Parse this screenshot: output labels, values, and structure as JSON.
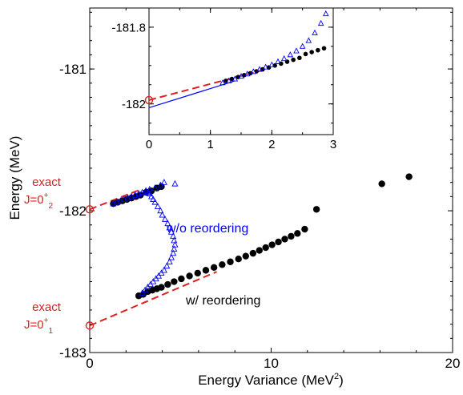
{
  "chart_data": [
    {
      "type": "scatter",
      "xlabel": "Energy Variance (MeV",
      "xlabel_sup": "2",
      "xlabel_close": ")",
      "ylabel": "Energy (MeV)",
      "xlim": [
        0,
        20
      ],
      "ylim": [
        -183,
        -180.57
      ],
      "x_ticks": [
        {
          "value": 0,
          "label": "0"
        },
        {
          "value": 10,
          "label": "10"
        },
        {
          "value": 20,
          "label": "20"
        }
      ],
      "y_ticks": [
        {
          "value": -181,
          "label": "-181"
        },
        {
          "value": -182,
          "label": "-182"
        },
        {
          "value": -183,
          "label": "-183"
        }
      ],
      "colors": {
        "reorder": "#000000",
        "noreorder": "#0000ff",
        "fit": "#e02020",
        "exact": "#e02020"
      },
      "annotations": {
        "exact_upper": {
          "line1": "exact",
          "line2_main": "J=0",
          "line2_sup": "+",
          "line2_sub": "2"
        },
        "exact_lower": {
          "line1": "exact",
          "line2_main": "J=0",
          "line2_sup": "+",
          "line2_sub": "1"
        },
        "label_noreorder": "w/o reordering",
        "label_reorder": "w/ reordering"
      },
      "exact_points": [
        [
          0,
          -181.99
        ],
        [
          0,
          -182.81
        ]
      ],
      "fit_lines": [
        {
          "from": [
            0,
            -181.99
          ],
          "to": [
            2.8,
            -181.85
          ]
        },
        {
          "from": [
            0,
            -182.81
          ],
          "to": [
            7.0,
            -182.43
          ]
        }
      ],
      "series": [
        {
          "name": "w/ reordering",
          "marker": "filled-circle",
          "x": [
            2.7,
            2.95,
            3.2,
            3.45,
            3.7,
            3.95,
            4.3,
            4.65,
            5.05,
            5.5,
            5.95,
            6.4,
            6.85,
            7.3,
            7.75,
            8.2,
            8.6,
            9.0,
            9.35,
            9.7,
            10.05,
            10.4,
            10.75,
            11.1,
            11.45,
            11.85,
            12.5,
            16.1,
            17.6,
            1.3,
            1.55,
            1.8,
            2.05,
            2.3,
            2.55,
            2.8,
            3.1,
            3.4,
            3.7,
            3.95
          ],
          "y": [
            -182.6,
            -182.59,
            -182.57,
            -182.56,
            -182.55,
            -182.54,
            -182.52,
            -182.5,
            -182.48,
            -182.46,
            -182.44,
            -182.42,
            -182.4,
            -182.38,
            -182.36,
            -182.34,
            -182.32,
            -182.3,
            -182.28,
            -182.26,
            -182.24,
            -182.22,
            -182.2,
            -182.18,
            -182.16,
            -182.13,
            -181.99,
            -181.81,
            -181.76,
            -181.95,
            -181.94,
            -181.93,
            -181.92,
            -181.91,
            -181.9,
            -181.89,
            -181.87,
            -181.86,
            -181.84,
            -181.83
          ]
        },
        {
          "name": "w/o reordering",
          "marker": "open-triangle",
          "x": [
            2.9,
            3.05,
            3.2,
            3.35,
            3.5,
            3.65,
            3.8,
            3.95,
            4.1,
            4.25,
            4.4,
            4.5,
            4.6,
            4.65,
            4.7,
            4.65,
            4.6,
            4.5,
            4.4,
            4.3,
            4.15,
            4.0,
            3.9,
            3.75,
            3.6,
            3.5,
            3.4,
            3.3,
            3.2,
            3.1,
            1.3,
            1.5,
            1.7,
            1.9,
            2.1,
            2.3,
            2.5,
            2.7,
            2.9,
            3.1,
            3.3,
            3.6,
            3.9,
            4.1,
            4.7
          ],
          "y": [
            -182.58,
            -182.56,
            -182.54,
            -182.52,
            -182.5,
            -182.48,
            -182.46,
            -182.44,
            -182.42,
            -182.39,
            -182.36,
            -182.33,
            -182.3,
            -182.27,
            -182.24,
            -182.21,
            -182.18,
            -182.15,
            -182.12,
            -182.09,
            -182.06,
            -182.03,
            -182.0,
            -181.97,
            -181.94,
            -181.92,
            -181.9,
            -181.88,
            -181.87,
            -181.86,
            -181.95,
            -181.94,
            -181.93,
            -181.92,
            -181.91,
            -181.9,
            -181.89,
            -181.88,
            -181.87,
            -181.86,
            -181.85,
            -181.84,
            -181.82,
            -181.8,
            -181.81
          ]
        }
      ]
    },
    {
      "type": "scatter",
      "inset": true,
      "xlim": [
        0,
        3
      ],
      "ylim": [
        -182.08,
        -181.75
      ],
      "x_ticks": [
        {
          "value": 0,
          "label": "0"
        },
        {
          "value": 1,
          "label": "1"
        },
        {
          "value": 2,
          "label": "2"
        },
        {
          "value": 3,
          "label": "3"
        }
      ],
      "y_ticks": [
        {
          "value": -181.8,
          "label": "-181.8"
        },
        {
          "value": -182,
          "label": "-182"
        }
      ],
      "exact_point": [
        0,
        -181.99
      ],
      "fit_line_red": {
        "from": [
          0,
          -181.99
        ],
        "to": [
          1.9,
          -181.91
        ]
      },
      "fit_line_blue": {
        "from": [
          0,
          -182.01
        ],
        "to": [
          1.4,
          -181.94
        ]
      },
      "series": [
        {
          "name": "w/ reordering",
          "marker": "filled-circle",
          "x": [
            1.25,
            1.35,
            1.45,
            1.55,
            1.65,
            1.75,
            1.85,
            1.95,
            2.05,
            2.15,
            2.25,
            2.35,
            2.45,
            2.55,
            2.65,
            2.75,
            2.85
          ],
          "y": [
            -181.94,
            -181.935,
            -181.93,
            -181.925,
            -181.92,
            -181.915,
            -181.91,
            -181.905,
            -181.9,
            -181.895,
            -181.89,
            -181.885,
            -181.88,
            -181.87,
            -181.865,
            -181.86,
            -181.855
          ]
        },
        {
          "name": "w/o reordering",
          "marker": "open-triangle",
          "x": [
            1.2,
            1.3,
            1.4,
            1.5,
            1.6,
            1.7,
            1.8,
            1.9,
            2.0,
            2.1,
            2.2,
            2.3,
            2.4,
            2.5,
            2.6,
            2.7,
            2.8,
            2.88
          ],
          "y": [
            -181.945,
            -181.94,
            -181.935,
            -181.928,
            -181.922,
            -181.916,
            -181.91,
            -181.904,
            -181.898,
            -181.89,
            -181.882,
            -181.872,
            -181.862,
            -181.85,
            -181.835,
            -181.815,
            -181.79,
            -181.765
          ]
        }
      ]
    }
  ]
}
